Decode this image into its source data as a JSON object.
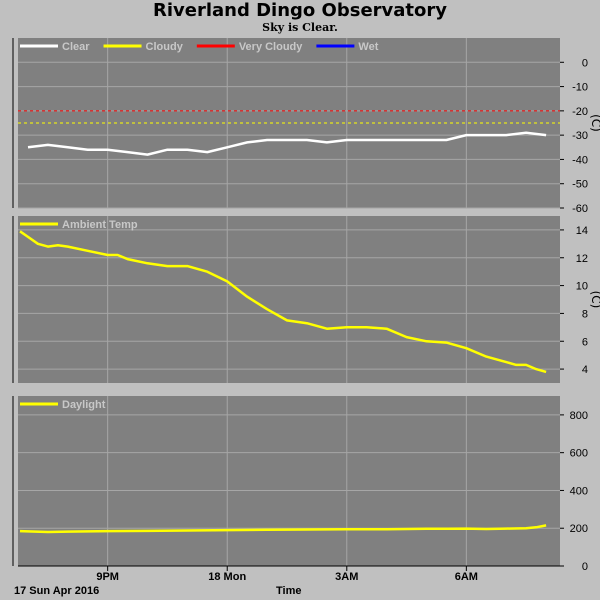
{
  "header": {
    "title": "Riverland Dingo Observatory",
    "subtitle": "Sky is Clear."
  },
  "footer": {
    "date": "17 Sun Apr 2016",
    "xlabel": "Time"
  },
  "x_ticks": [
    "9PM",
    "18 Mon",
    "3AM",
    "6AM"
  ],
  "chart_data": [
    {
      "type": "line",
      "panel": "cloud",
      "ylabel": "(C)",
      "ylim": [
        -60,
        10
      ],
      "yticks": [
        0,
        -10,
        -20,
        -30,
        -40,
        -50,
        -60
      ],
      "grid": true,
      "legend_position": "top-left",
      "legend": [
        {
          "name": "Clear",
          "color": "#ffffff"
        },
        {
          "name": "Cloudy",
          "color": "#ffff00"
        },
        {
          "name": "Very Cloudy",
          "color": "#ff0000"
        },
        {
          "name": "Wet",
          "color": "#0000ff"
        }
      ],
      "thresholds": [
        {
          "name": "Very Cloudy",
          "value": -20,
          "color": "#ff0000"
        },
        {
          "name": "Cloudy",
          "value": -25,
          "color": "#ffff00"
        }
      ],
      "x": [
        19.0,
        19.5,
        20.0,
        20.5,
        21.0,
        21.5,
        22.0,
        22.5,
        23.0,
        23.5,
        24.0,
        24.5,
        25.0,
        25.5,
        26.0,
        26.5,
        27.0,
        27.5,
        28.0,
        28.5,
        29.0,
        29.5,
        30.0,
        30.5,
        31.0,
        31.5,
        32.0
      ],
      "series": [
        {
          "name": "Clear",
          "color": "#ffffff",
          "values": [
            -35,
            -34,
            -35,
            -36,
            -36,
            -37,
            -38,
            -36,
            -36,
            -37,
            -35,
            -33,
            -32,
            -32,
            -32,
            -33,
            -32,
            -32,
            -32,
            -32,
            -32,
            -32,
            -30,
            -30,
            -30,
            -29,
            -30
          ]
        }
      ]
    },
    {
      "type": "line",
      "panel": "temperature",
      "ylabel": "(C)",
      "ylim": [
        3,
        15
      ],
      "yticks": [
        14,
        12,
        10,
        8,
        6,
        4
      ],
      "grid": true,
      "legend_position": "top-left",
      "legend": [
        {
          "name": "Ambient Temp",
          "color": "#ffff00"
        }
      ],
      "x": [
        18.8,
        19.0,
        19.25,
        19.5,
        19.75,
        20.0,
        20.5,
        21.0,
        21.25,
        21.5,
        22.0,
        22.5,
        23.0,
        23.5,
        24.0,
        24.5,
        25.0,
        25.5,
        26.0,
        26.5,
        27.0,
        27.5,
        28.0,
        28.5,
        29.0,
        29.5,
        30.0,
        30.5,
        30.75,
        31.0,
        31.25,
        31.5,
        31.75,
        32.0
      ],
      "series": [
        {
          "name": "Ambient Temp",
          "color": "#ffff00",
          "values": [
            13.9,
            13.5,
            13.0,
            12.8,
            12.9,
            12.8,
            12.5,
            12.2,
            12.2,
            11.9,
            11.6,
            11.4,
            11.4,
            11.0,
            10.3,
            9.2,
            8.3,
            7.5,
            7.3,
            6.9,
            7.0,
            7.0,
            6.9,
            6.3,
            6.0,
            5.9,
            5.5,
            4.9,
            4.7,
            4.5,
            4.3,
            4.3,
            4.0,
            3.8
          ]
        }
      ]
    },
    {
      "type": "line",
      "panel": "daylight",
      "ylabel": "",
      "ylim": [
        0,
        900
      ],
      "yticks": [
        800,
        600,
        400,
        200,
        0
      ],
      "grid": true,
      "legend_position": "top-left",
      "legend": [
        {
          "name": "Daylight",
          "color": "#ffff00"
        }
      ],
      "x": [
        18.8,
        19.5,
        20.0,
        21.0,
        22.0,
        23.0,
        24.0,
        25.0,
        26.0,
        27.0,
        28.0,
        29.0,
        29.5,
        30.0,
        30.5,
        31.0,
        31.5,
        31.75,
        32.0
      ],
      "series": [
        {
          "name": "Daylight",
          "color": "#ffff00",
          "values": [
            185,
            180,
            182,
            185,
            186,
            188,
            190,
            192,
            193,
            195,
            195,
            197,
            197,
            198,
            196,
            198,
            200,
            205,
            215
          ]
        }
      ]
    }
  ]
}
